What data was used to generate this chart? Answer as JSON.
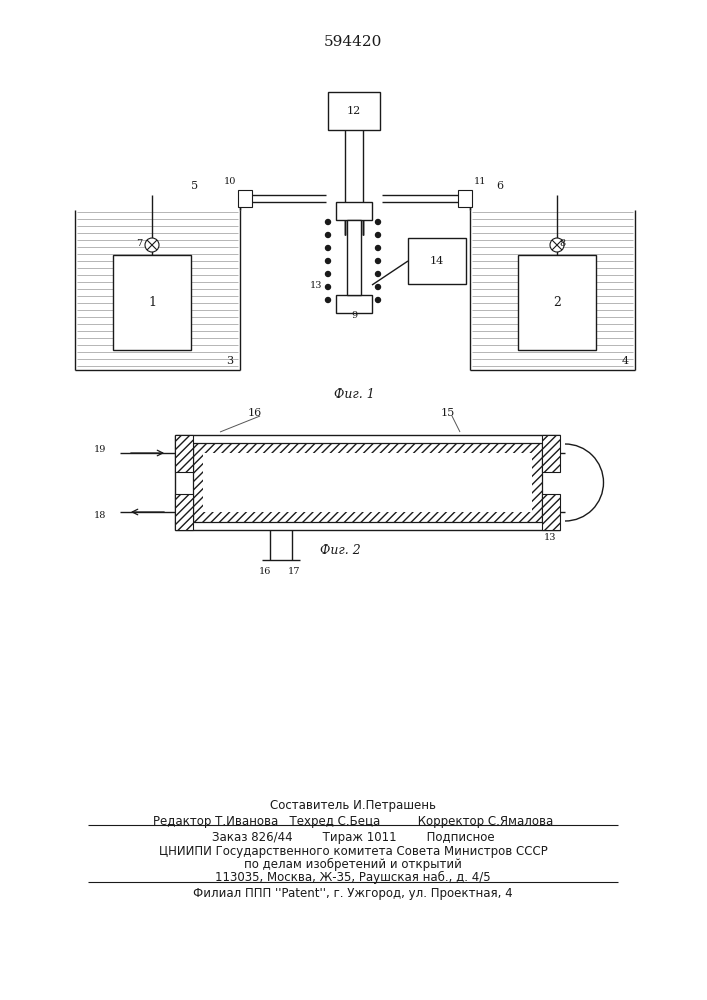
{
  "patent_number": "594420",
  "fig1_caption": "Фиг. 1",
  "fig2_caption": "Фиг. 2",
  "footer_line1": "Составитель И.Петрашень",
  "footer_line2": "Редактор Т.Иванова   Техред С.Беца          Корректор С.Ямалова",
  "footer_line3": "Заказ 826/44        Тираж 1011        Подписное",
  "footer_line4": "ЦНИИПИ Государственного комитета Совета Министров СССР",
  "footer_line5": "по делам изобретений и открытий",
  "footer_line6": "113035, Москва, Ж-35, Раушская наб., д. 4/5",
  "footer_line7": "Филиал ППП ''Patent'', г. Ужгород, ул. Проектная, 4",
  "bg_color": "#ffffff",
  "line_color": "#1a1a1a"
}
